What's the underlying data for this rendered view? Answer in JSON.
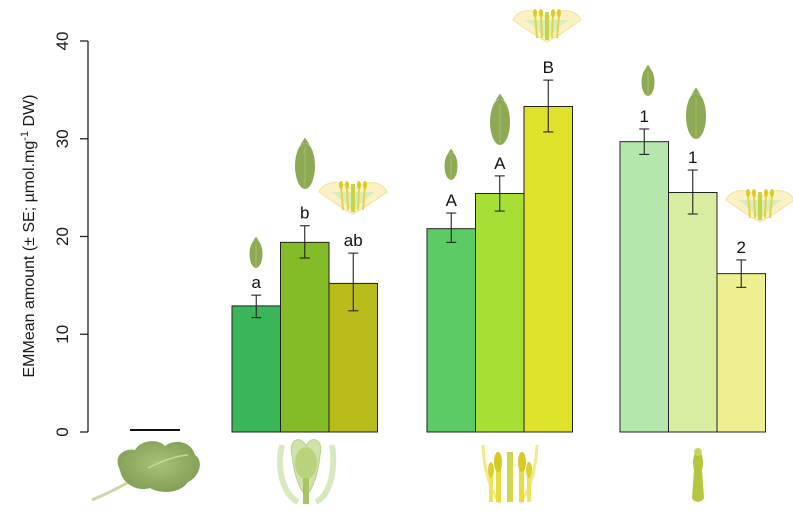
{
  "chart_data": {
    "type": "bar",
    "ylabel": "EMMean amount (± SE; µmol.mg",
    "ylabel_sup": "-1",
    "ylabel_end": " DW)",
    "ylim": [
      0,
      40
    ],
    "yticks": [
      "0",
      "10",
      "20",
      "30",
      "40"
    ],
    "grid": false,
    "groups": [
      {
        "name": "leaf",
        "icon": "leaf-icon",
        "bars": []
      },
      {
        "name": "pistil",
        "icon": "pistil-icon",
        "bars": [
          {
            "value": 12.9,
            "se_low": 11.7,
            "se_high": 14.0,
            "label": "a",
            "color": "#3cb55a",
            "icon": "small-leaf-icon"
          },
          {
            "value": 19.4,
            "se_low": 17.8,
            "se_high": 21.1,
            "label": "b",
            "color": "#84bb28",
            "icon": "large-leaf-icon"
          },
          {
            "value": 15.2,
            "se_low": 12.4,
            "se_high": 18.3,
            "label": "ab",
            "color": "#b8bb1a",
            "icon": "flower-icon"
          }
        ]
      },
      {
        "name": "stamens",
        "icon": "stamens-icon",
        "bars": [
          {
            "value": 20.8,
            "se_low": 19.4,
            "se_high": 22.4,
            "label": "A",
            "color": "#5ccb66",
            "icon": "small-leaf-icon"
          },
          {
            "value": 24.4,
            "se_low": 22.6,
            "se_high": 26.2,
            "label": "A",
            "color": "#a7df36",
            "icon": "large-leaf-icon"
          },
          {
            "value": 33.3,
            "se_low": 30.7,
            "se_high": 36.0,
            "label": "B",
            "color": "#dfe22a",
            "icon": "flower-icon"
          }
        ]
      },
      {
        "name": "style",
        "icon": "style-icon",
        "bars": [
          {
            "value": 29.7,
            "se_low": 28.4,
            "se_high": 31.0,
            "label": "1",
            "color": "#b4e6ae",
            "icon": "small-leaf-icon"
          },
          {
            "value": 24.5,
            "se_low": 22.3,
            "se_high": 26.8,
            "label": "1",
            "color": "#d8eda0",
            "icon": "large-leaf-icon"
          },
          {
            "value": 16.2,
            "se_low": 14.8,
            "se_high": 17.6,
            "label": "2",
            "color": "#eef091",
            "icon": "flower-icon"
          }
        ]
      }
    ]
  }
}
